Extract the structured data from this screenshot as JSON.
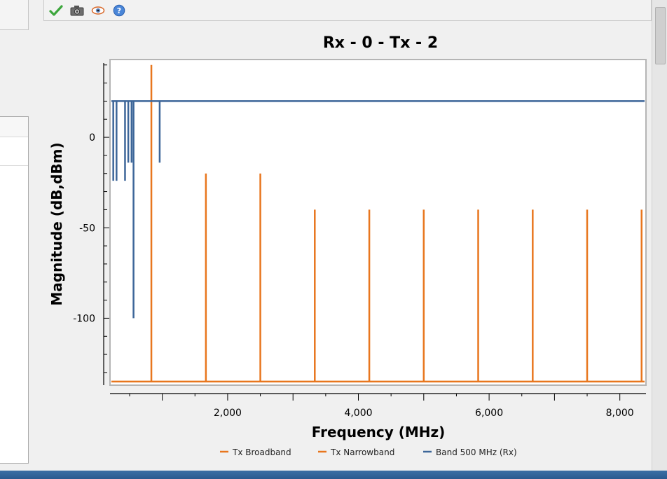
{
  "toolbar": {
    "buttons": [
      {
        "icon": "checkmark-icon"
      },
      {
        "icon": "camera-icon"
      },
      {
        "icon": "eye-icon"
      },
      {
        "icon": "help-icon"
      }
    ]
  },
  "colors": {
    "orange": "#e8761e",
    "blue": "#3d6699"
  },
  "chart_data": {
    "type": "line",
    "title": "Rx - 0 - Tx - 2",
    "xlabel": "Frequency (MHz)",
    "ylabel": "Magnitude (dB,dBm)",
    "xlim": [
      200,
      8400
    ],
    "ylim": [
      -137,
      43
    ],
    "x_ticks": [
      2000,
      4000,
      6000,
      8000
    ],
    "x_tick_labels": [
      "2,000",
      "4,000",
      "6,000",
      "8,000"
    ],
    "y_ticks": [
      0,
      -50,
      -100
    ],
    "y_tick_labels": [
      "0",
      "-50",
      "-100"
    ],
    "legend": [
      "Tx Broadband",
      "Tx Narrowband",
      "Band 500 MHz (Rx)"
    ],
    "legend_position": "bottom",
    "grid": false,
    "series": [
      {
        "name": "Tx Broadband",
        "color": "#e8761e",
        "baseline": -135,
        "spikes": [
          {
            "x": 833,
            "y": 40
          },
          {
            "x": 1667,
            "y": -20
          },
          {
            "x": 2500,
            "y": -20
          },
          {
            "x": 3333,
            "y": -40
          },
          {
            "x": 4167,
            "y": -40
          },
          {
            "x": 5000,
            "y": -40
          },
          {
            "x": 5833,
            "y": -40
          },
          {
            "x": 6667,
            "y": -40
          },
          {
            "x": 7500,
            "y": -40
          },
          {
            "x": 8333,
            "y": -40
          }
        ]
      },
      {
        "name": "Tx Narrowband",
        "color": "#e8761e",
        "baseline": -135,
        "spikes": []
      },
      {
        "name": "Band 500 MHz (Rx)",
        "color": "#3d6699",
        "baseline": 20,
        "spikes": [
          {
            "x": 250,
            "y": -24
          },
          {
            "x": 300,
            "y": -24
          },
          {
            "x": 430,
            "y": -24
          },
          {
            "x": 480,
            "y": -14
          },
          {
            "x": 530,
            "y": -14
          },
          {
            "x": 560,
            "y": -100
          },
          {
            "x": 960,
            "y": -14
          }
        ]
      }
    ]
  }
}
